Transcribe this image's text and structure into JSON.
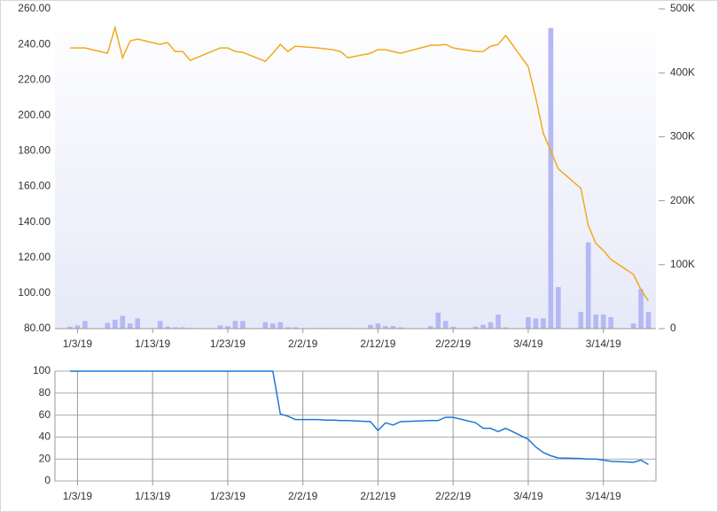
{
  "chart_data": [
    {
      "type": "combo",
      "x": [
        "2019-01-02",
        "2019-01-03",
        "2019-01-04",
        "2019-01-07",
        "2019-01-08",
        "2019-01-09",
        "2019-01-10",
        "2019-01-11",
        "2019-01-14",
        "2019-01-15",
        "2019-01-16",
        "2019-01-17",
        "2019-01-18",
        "2019-01-22",
        "2019-01-23",
        "2019-01-24",
        "2019-01-25",
        "2019-01-28",
        "2019-01-29",
        "2019-01-30",
        "2019-01-31",
        "2019-02-01",
        "2019-02-04",
        "2019-02-05",
        "2019-02-06",
        "2019-02-07",
        "2019-02-08",
        "2019-02-11",
        "2019-02-12",
        "2019-02-13",
        "2019-02-14",
        "2019-02-15",
        "2019-02-19",
        "2019-02-20",
        "2019-02-21",
        "2019-02-22",
        "2019-02-25",
        "2019-02-26",
        "2019-02-27",
        "2019-02-28",
        "2019-03-01",
        "2019-03-04",
        "2019-03-05",
        "2019-03-06",
        "2019-03-07",
        "2019-03-08",
        "2019-03-11",
        "2019-03-12",
        "2019-03-13",
        "2019-03-14",
        "2019-03-15",
        "2019-03-18",
        "2019-03-19",
        "2019-03-20"
      ],
      "series": [
        {
          "type": "bar",
          "axis": "y2",
          "color": "#b4b8f4",
          "values": [
            3000,
            5000,
            12000,
            9000,
            14000,
            20000,
            8000,
            16000,
            12000,
            3000,
            2000,
            2000,
            1000,
            5000,
            4000,
            12000,
            12000,
            10000,
            8000,
            10000,
            2000,
            2000,
            1000,
            1000,
            1000,
            1000,
            1000,
            6000,
            8000,
            4000,
            4000,
            2000,
            4000,
            25000,
            12000,
            3000,
            3000,
            6000,
            10000,
            22000,
            2000,
            18000,
            16000,
            16000,
            470000,
            65000,
            26000,
            135000,
            22000,
            22000,
            18000,
            8000,
            62000,
            26000
          ]
        },
        {
          "type": "line",
          "color": "#f2a91d",
          "values": [
            238,
            238,
            238,
            235,
            249.5,
            232.5,
            242,
            243,
            240,
            241,
            236,
            236,
            231,
            238,
            238,
            236,
            235.5,
            230.5,
            235,
            240,
            236,
            239,
            238,
            237.5,
            237,
            236,
            232.5,
            235,
            237,
            237,
            236,
            235,
            239.5,
            239.5,
            240,
            238,
            236,
            236,
            239,
            240,
            245,
            227.5,
            210,
            190,
            180,
            170,
            159,
            138,
            128,
            124,
            119,
            110.5,
            102,
            95.5
          ]
        }
      ],
      "xlim": [
        "2018-12-31",
        "2019-03-21"
      ],
      "xticks": [
        {
          "value": "2019-01-03",
          "label": "1/3/19"
        },
        {
          "value": "2019-01-13",
          "label": "1/13/19"
        },
        {
          "value": "2019-01-23",
          "label": "1/23/19"
        },
        {
          "value": "2019-02-02",
          "label": "2/2/19"
        },
        {
          "value": "2019-02-12",
          "label": "2/12/19"
        },
        {
          "value": "2019-02-22",
          "label": "2/22/19"
        },
        {
          "value": "2019-03-04",
          "label": "3/4/19"
        },
        {
          "value": "2019-03-14",
          "label": "3/14/19"
        }
      ],
      "ylim": [
        80,
        260
      ],
      "yticks": [
        {
          "value": 80,
          "label": "80.00"
        },
        {
          "value": 100,
          "label": "100.00"
        },
        {
          "value": 120,
          "label": "120.00"
        },
        {
          "value": 140,
          "label": "140.00"
        },
        {
          "value": 160,
          "label": "160.00"
        },
        {
          "value": 180,
          "label": "180.00"
        },
        {
          "value": 200,
          "label": "200.00"
        },
        {
          "value": 220,
          "label": "220.00"
        },
        {
          "value": 240,
          "label": "240.00"
        },
        {
          "value": 260,
          "label": "260.00"
        }
      ],
      "y2lim": [
        0,
        500000
      ],
      "y2ticks": [
        0,
        {
          "value": 100000,
          "label": "100K"
        },
        {
          "value": 200000,
          "label": "200K"
        },
        {
          "value": 300000,
          "label": "300K"
        },
        {
          "value": 400000,
          "label": "400K"
        },
        {
          "value": 500000,
          "label": "500K"
        }
      ],
      "grid": false
    },
    {
      "type": "line",
      "x": [
        "2019-01-02",
        "2019-01-03",
        "2019-01-04",
        "2019-01-07",
        "2019-01-08",
        "2019-01-09",
        "2019-01-10",
        "2019-01-11",
        "2019-01-14",
        "2019-01-15",
        "2019-01-16",
        "2019-01-17",
        "2019-01-18",
        "2019-01-22",
        "2019-01-23",
        "2019-01-24",
        "2019-01-25",
        "2019-01-28",
        "2019-01-29",
        "2019-01-30",
        "2019-01-31",
        "2019-02-01",
        "2019-02-04",
        "2019-02-05",
        "2019-02-06",
        "2019-02-07",
        "2019-02-08",
        "2019-02-11",
        "2019-02-12",
        "2019-02-13",
        "2019-02-14",
        "2019-02-15",
        "2019-02-19",
        "2019-02-20",
        "2019-02-21",
        "2019-02-22",
        "2019-02-25",
        "2019-02-26",
        "2019-02-27",
        "2019-02-28",
        "2019-03-01",
        "2019-03-04",
        "2019-03-05",
        "2019-03-06",
        "2019-03-07",
        "2019-03-08",
        "2019-03-11",
        "2019-03-12",
        "2019-03-13",
        "2019-03-14",
        "2019-03-15",
        "2019-03-18",
        "2019-03-19",
        "2019-03-20"
      ],
      "series": [
        {
          "color": "#1f77d4",
          "values": [
            100,
            100,
            100,
            100,
            100,
            100,
            100,
            100,
            100,
            100,
            100,
            100,
            100,
            100,
            100,
            100,
            100,
            100,
            100,
            61,
            59,
            56,
            56,
            55.5,
            55.5,
            55,
            55,
            54,
            46,
            53,
            51,
            54,
            55,
            55,
            58,
            58,
            53,
            48,
            48,
            45,
            48,
            38,
            31,
            26,
            23,
            21,
            20.5,
            20,
            20,
            19,
            18,
            17,
            19,
            15
          ]
        }
      ],
      "xlim": [
        "2018-12-31",
        "2019-03-21"
      ],
      "xticks": [
        {
          "value": "2019-01-03",
          "label": "1/3/19"
        },
        {
          "value": "2019-01-13",
          "label": "1/13/19"
        },
        {
          "value": "2019-01-23",
          "label": "1/23/19"
        },
        {
          "value": "2019-02-02",
          "label": "2/2/19"
        },
        {
          "value": "2019-02-12",
          "label": "2/12/19"
        },
        {
          "value": "2019-02-22",
          "label": "2/22/19"
        },
        {
          "value": "2019-03-04",
          "label": "3/4/19"
        },
        {
          "value": "2019-03-14",
          "label": "3/14/19"
        }
      ],
      "ylim": [
        0,
        100
      ],
      "yticks": [
        0,
        20,
        40,
        60,
        80,
        100
      ],
      "grid": true
    }
  ]
}
